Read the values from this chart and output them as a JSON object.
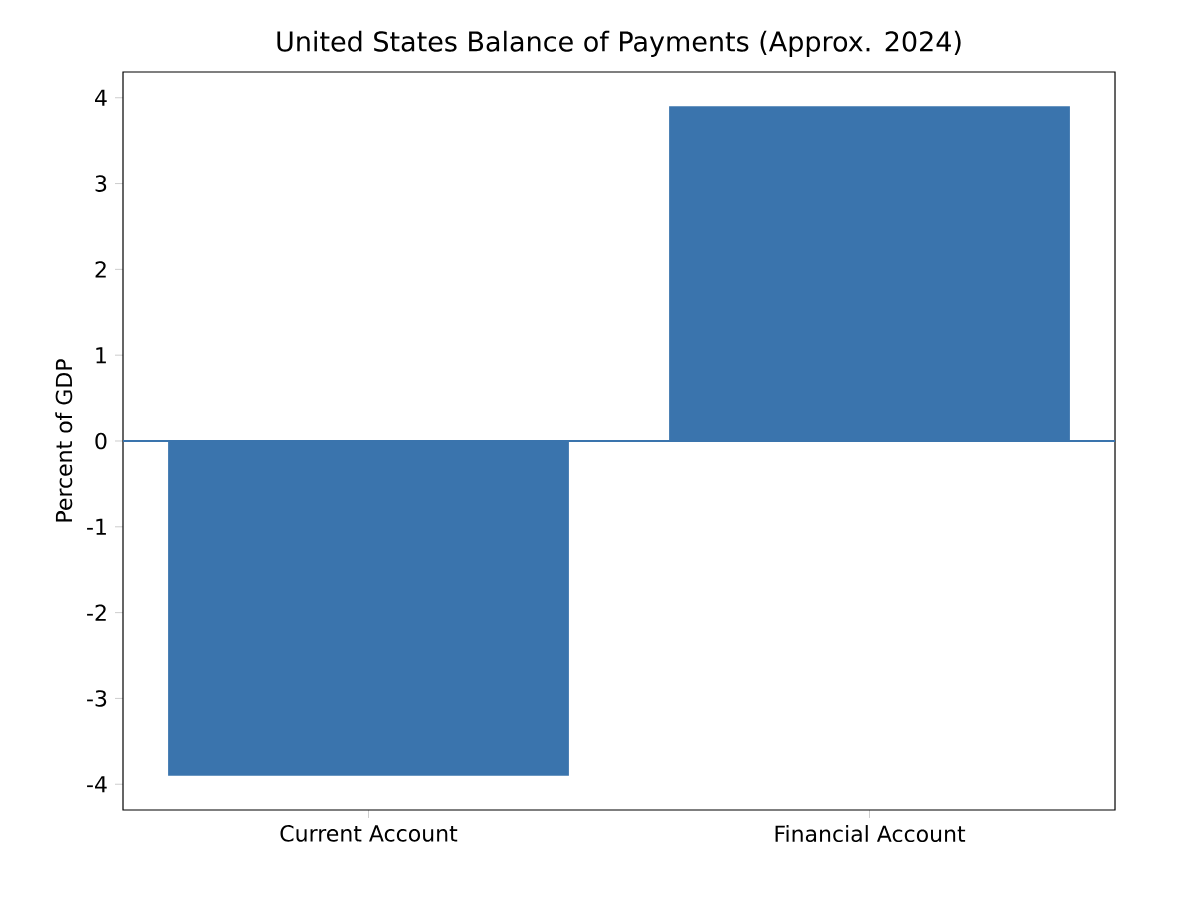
{
  "chart_data": {
    "type": "bar",
    "title": "United States Balance of Payments (Approx. 2024)",
    "ylabel": "Percent of GDP",
    "categories": [
      "Current Account",
      "Financial Account"
    ],
    "values": [
      -3.9,
      3.9
    ],
    "color": "#3a74ad",
    "ylim": [
      -4.3,
      4.3
    ],
    "yticks": [
      -4,
      -3,
      -2,
      -1,
      0,
      1,
      2,
      3,
      4
    ],
    "ref_lines": [
      {
        "axis": "y",
        "value": 0,
        "color": "#3a74ad"
      }
    ]
  }
}
